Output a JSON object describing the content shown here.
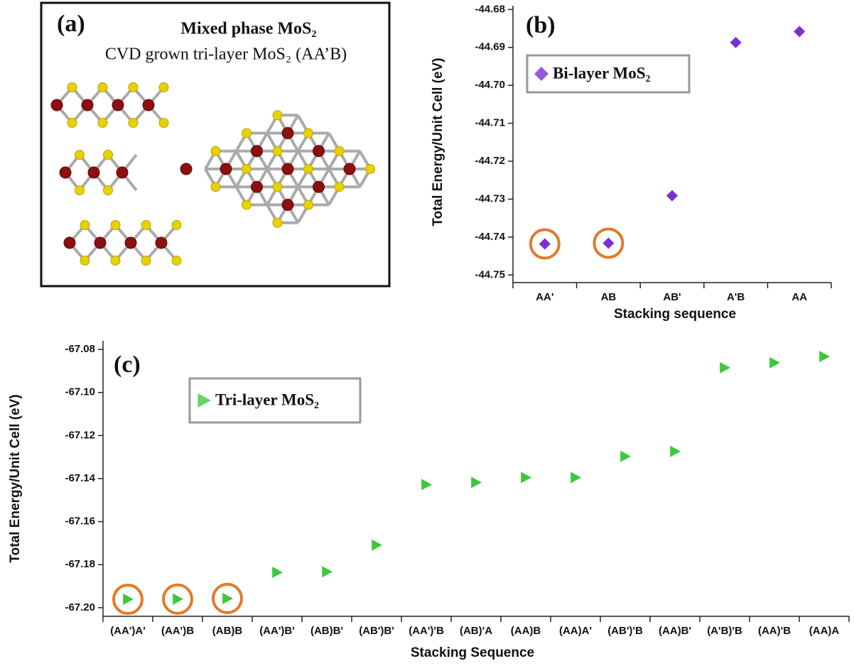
{
  "panel_a": {
    "label": "(a)",
    "title": "Mixed phase MoS₂",
    "subtitle": "CVD grown tri-layer MoS₂ (AA’B)"
  },
  "chart_data": [
    {
      "type": "scatter",
      "panel_label": "(b)",
      "x_label": "Stacking sequence",
      "y_label": "Total Energy/Unit Cell (eV)",
      "categories": [
        "AA'",
        "AB",
        "AB'",
        "A'B",
        "AA"
      ],
      "series": [
        {
          "name": "Bi-layer MoS₂",
          "color": "#7b2fd6",
          "marker": "diamond",
          "values": [
            -44.7418,
            -44.7416,
            -44.7291,
            -44.6887,
            -44.6858
          ]
        }
      ],
      "highlight": [
        0,
        1
      ],
      "highlight_color": "#e07b2a",
      "ylim": [
        -44.752,
        -44.679
      ],
      "yticks": [
        -44.68,
        -44.69,
        {
          "value": -44.7,
          "label": "-44.70"
        },
        -44.71,
        -44.72,
        -44.73,
        -44.74,
        -44.75
      ]
    },
    {
      "type": "scatter",
      "panel_label": "(c)",
      "x_label": "Stacking Sequence",
      "y_label": "Total Energy/Unit Cell (eV)",
      "categories": [
        "(AA')A'",
        "(AA')B",
        "(AB)B",
        "(AA')B'",
        "(AB)B'",
        "(AB')B'",
        "(AA')'B",
        "(AB)'A",
        "(AA)B",
        "(AA)A'",
        "(AB')'B",
        "(AA)B'",
        "(A'B)'B",
        "(AA)'B",
        "(AA)A"
      ],
      "series": [
        {
          "name": "Tri-layer MoS₂",
          "color": "#3cc83c",
          "marker": "triangle-right",
          "values": [
            -67.1961,
            -67.196,
            -67.1957,
            -67.1836,
            -67.1833,
            -67.1709,
            -67.1428,
            -67.1418,
            -67.1395,
            -67.1395,
            -67.1297,
            -67.1274,
            -67.0885,
            -67.0862,
            -67.0833
          ]
        }
      ],
      "highlight": [
        0,
        1,
        2
      ],
      "highlight_color": "#e07b2a",
      "ylim": [
        -67.204,
        -67.076
      ],
      "yticks": [
        -67.08,
        {
          "value": -67.1,
          "label": "-67.10"
        },
        -67.12,
        -67.14,
        -67.16,
        -67.18,
        {
          "value": -67.2,
          "label": "-67.20"
        }
      ]
    }
  ]
}
